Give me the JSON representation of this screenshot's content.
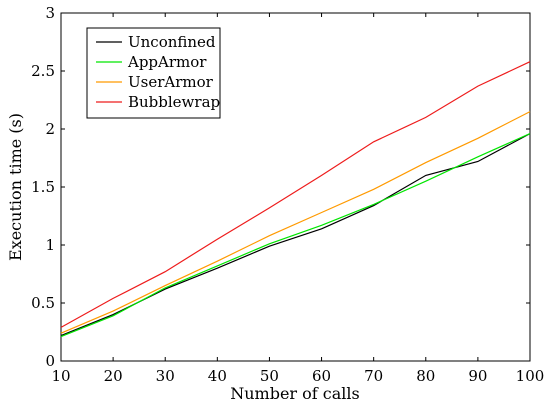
{
  "chart_data": {
    "type": "line",
    "title": "",
    "xlabel": "Number of calls",
    "ylabel": "Execution time (s)",
    "xlim": [
      10,
      100
    ],
    "ylim": [
      0,
      3
    ],
    "x": [
      10,
      20,
      30,
      40,
      50,
      60,
      70,
      80,
      90,
      100
    ],
    "x_ticks": [
      "10",
      "20",
      "30",
      "40",
      "50",
      "60",
      "70",
      "80",
      "90",
      "100"
    ],
    "y_ticks": [
      "0",
      "0.5",
      "1",
      "1.5",
      "2",
      "2.5",
      "3"
    ],
    "y_tick_values": [
      0,
      0.5,
      1,
      1.5,
      2,
      2.5,
      3
    ],
    "grid": false,
    "legend_position": "top-left",
    "series": [
      {
        "name": "Unconfined",
        "color": "#000000",
        "values": [
          0.22,
          0.4,
          0.62,
          0.8,
          0.99,
          1.14,
          1.34,
          1.6,
          1.72,
          1.96
        ]
      },
      {
        "name": "AppArmor",
        "color": "#00e600",
        "values": [
          0.21,
          0.39,
          0.63,
          0.82,
          1.01,
          1.17,
          1.35,
          1.55,
          1.76,
          1.96
        ]
      },
      {
        "name": "UserArmor",
        "color": "#ff9a00",
        "values": [
          0.24,
          0.43,
          0.65,
          0.86,
          1.08,
          1.28,
          1.48,
          1.71,
          1.92,
          2.15
        ]
      },
      {
        "name": "Bubblewrap",
        "color": "#ee1c1c",
        "values": [
          0.29,
          0.54,
          0.77,
          1.05,
          1.32,
          1.6,
          1.89,
          2.1,
          2.37,
          2.58
        ]
      }
    ]
  }
}
